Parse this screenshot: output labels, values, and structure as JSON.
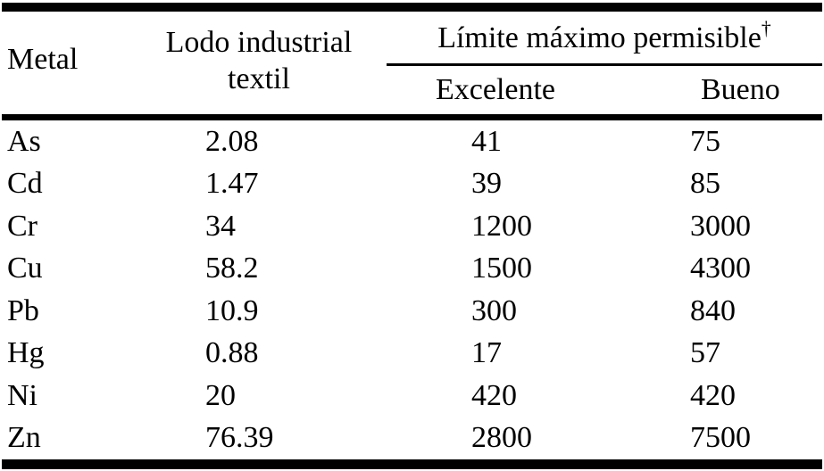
{
  "colors": {
    "background": "#ffffff",
    "text": "#000000",
    "rule": "#000000"
  },
  "table": {
    "header": {
      "metal": "Metal",
      "sludge_line1": "Lodo industrial",
      "sludge_line2": "textil",
      "limit_group": "Límite máximo permisible",
      "limit_group_superscript": "†",
      "sub_excellent": "Excelente",
      "sub_good": "Bueno"
    },
    "rows": [
      {
        "metal": "As",
        "sludge": "2.08",
        "excellent": "41",
        "good": "75"
      },
      {
        "metal": "Cd",
        "sludge": "1.47",
        "excellent": "39",
        "good": "85"
      },
      {
        "metal": "Cr",
        "sludge": "34",
        "excellent": "1200",
        "good": "3000"
      },
      {
        "metal": "Cu",
        "sludge": "58.2",
        "excellent": "1500",
        "good": "4300"
      },
      {
        "metal": "Pb",
        "sludge": "10.9",
        "excellent": "300",
        "good": "840"
      },
      {
        "metal": "Hg",
        "sludge": "0.88",
        "excellent": "17",
        "good": "57"
      },
      {
        "metal": "Ni",
        "sludge": "20",
        "excellent": "420",
        "good": "420"
      },
      {
        "metal": "Zn",
        "sludge": "76.39",
        "excellent": "2800",
        "good": "7500"
      }
    ]
  }
}
